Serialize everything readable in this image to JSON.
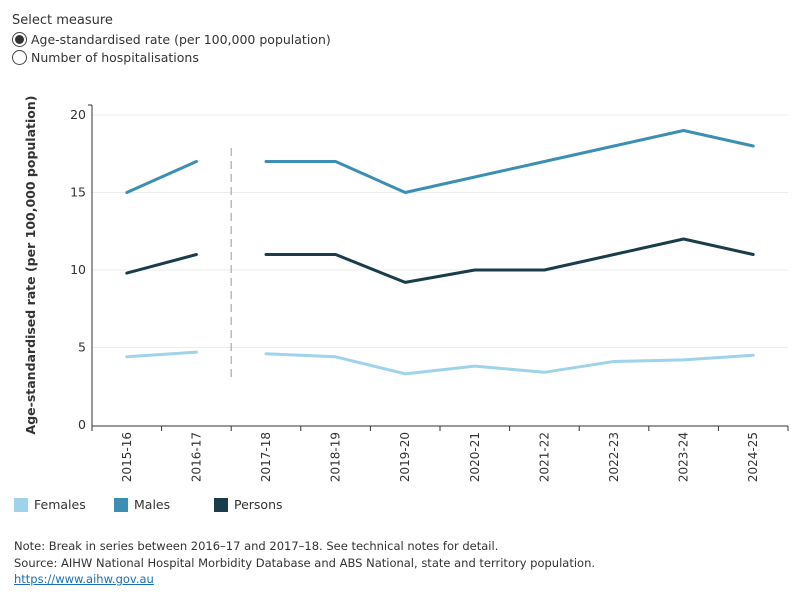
{
  "measure": {
    "title": "Select measure",
    "options": [
      {
        "label": "Age-standardised rate (per 100,000 population)",
        "selected": true
      },
      {
        "label": "Number of hospitalisations",
        "selected": false
      }
    ]
  },
  "chart_data": {
    "type": "line",
    "ylabel": "Age-standardised rate (per 100,000 population)",
    "xlabel": "",
    "ylim": [
      0,
      20
    ],
    "yticks": [
      0,
      5,
      10,
      15,
      20
    ],
    "categories": [
      "2015-16",
      "2016-17",
      "2017-18",
      "2018-19",
      "2019-20",
      "2020-21",
      "2021-22",
      "2022-23",
      "2023-24",
      "2024-25"
    ],
    "break_after_index": 1,
    "series": [
      {
        "name": "Females",
        "color": "#9fd3ec",
        "values": [
          4.4,
          4.7,
          4.6,
          4.4,
          3.3,
          3.8,
          3.4,
          4.1,
          4.2,
          4.5
        ]
      },
      {
        "name": "Males",
        "color": "#3a8fb3",
        "values": [
          15.0,
          17.0,
          17.0,
          17.0,
          15.0,
          16.0,
          17.0,
          18.0,
          19.0,
          18.0
        ]
      },
      {
        "name": "Persons",
        "color": "#1a3d4c",
        "values": [
          9.8,
          11.0,
          11.0,
          11.0,
          9.2,
          10.0,
          10.0,
          11.0,
          12.0,
          11.0
        ]
      }
    ]
  },
  "footer": {
    "note": "Note: Break in series between 2016–17 and 2017–18. See technical notes for detail.",
    "source": "Source: AIHW National Hospital Morbidity Database and ABS National, state and territory population.",
    "link": "https://www.aihw.gov.au"
  }
}
